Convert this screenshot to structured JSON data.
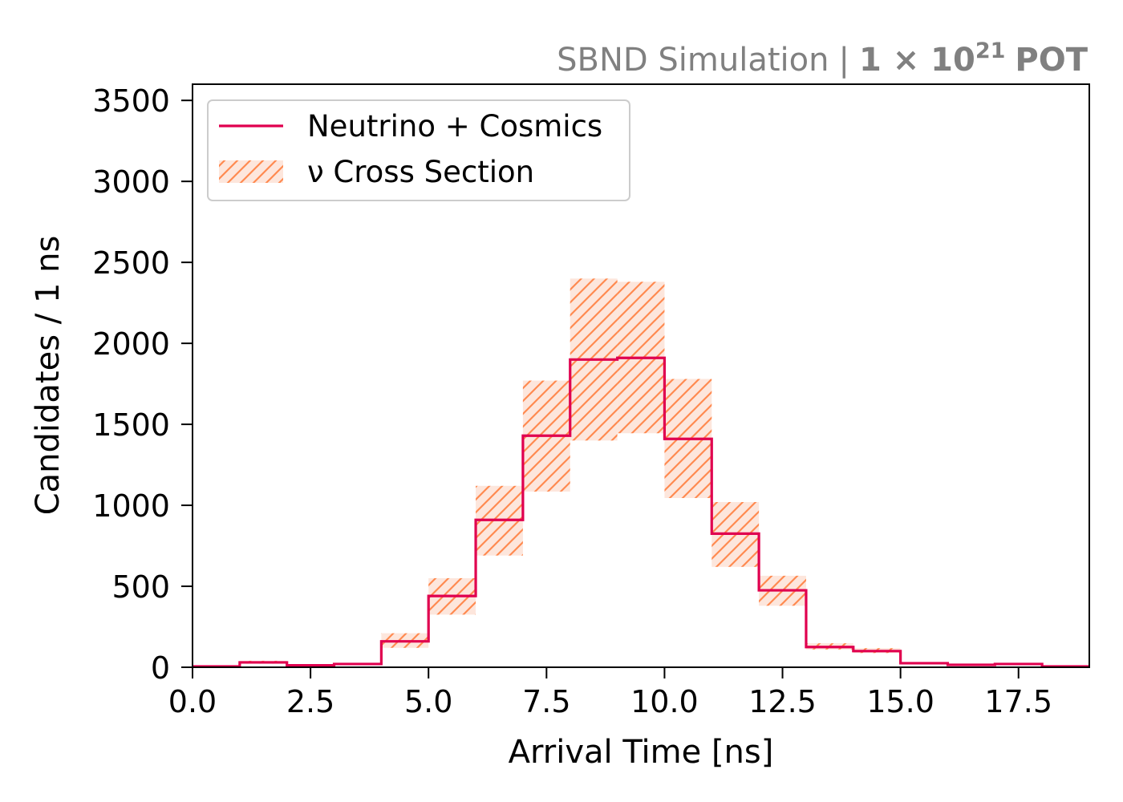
{
  "header": {
    "experiment": "SBND Simulation",
    "separator": "|",
    "pot_mantissa": "1 × 10",
    "pot_exponent": "21",
    "pot_unit": "POT"
  },
  "chart_data": {
    "type": "histogram",
    "xlabel": "Arrival Time [ns]",
    "ylabel": "Candidates / 1 ns",
    "xlim": [
      0,
      19
    ],
    "ylim": [
      0,
      3600
    ],
    "xticks": [
      0.0,
      2.5,
      5.0,
      7.5,
      10.0,
      12.5,
      15.0,
      17.5
    ],
    "xtick_labels": [
      "0.0",
      "2.5",
      "5.0",
      "7.5",
      "10.0",
      "12.5",
      "15.0",
      "17.5"
    ],
    "yticks": [
      0,
      500,
      1000,
      1500,
      2000,
      2500,
      3000,
      3500
    ],
    "ytick_labels": [
      "0",
      "500",
      "1000",
      "1500",
      "2000",
      "2500",
      "3000",
      "3500"
    ],
    "bin_edges": [
      0,
      1,
      2,
      3,
      4,
      5,
      6,
      7,
      8,
      9,
      10,
      11,
      12,
      13,
      14,
      15,
      16,
      17,
      18,
      19
    ],
    "legend_position": "upper-left",
    "series": [
      {
        "name": "Neutrino + Cosmics",
        "style": "step",
        "color": "#e0004f",
        "values": [
          5,
          30,
          12,
          20,
          160,
          440,
          910,
          1430,
          1900,
          1910,
          1410,
          825,
          475,
          125,
          100,
          25,
          15,
          20,
          5
        ]
      },
      {
        "name": "ν Cross Section",
        "style": "hatched-band",
        "color": "#ff8a50",
        "fill": "#fde6dc",
        "lower": [
          4,
          22,
          9,
          15,
          120,
          325,
          690,
          1085,
          1400,
          1445,
          1045,
          620,
          380,
          110,
          88,
          21,
          12,
          17,
          4
        ],
        "upper": [
          6,
          40,
          16,
          27,
          210,
          550,
          1120,
          1770,
          2400,
          2380,
          1780,
          1020,
          565,
          148,
          118,
          30,
          19,
          24,
          6
        ]
      }
    ]
  }
}
